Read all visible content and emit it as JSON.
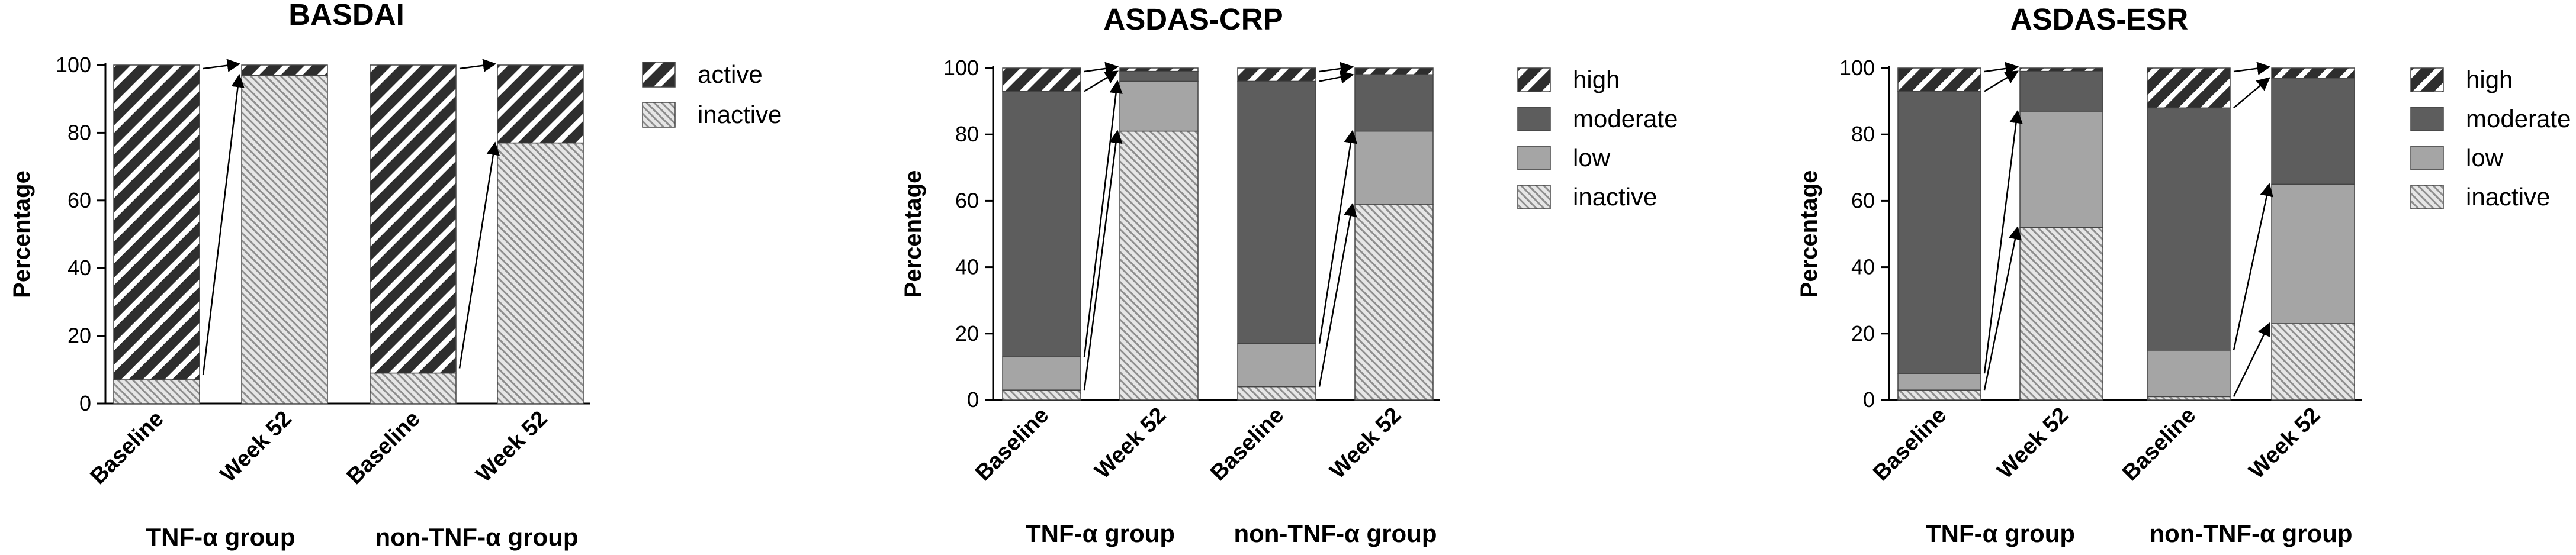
{
  "colors": {
    "moderate": "#5d5d5d",
    "low": "#a5a5a5",
    "hatch_dark_bg": "#2e2e2e",
    "hatch_light_bg": "#d7d7d7",
    "axis": "#000000"
  },
  "chart_data": [
    {
      "type": "bar",
      "stacked": true,
      "title": "BASDAI",
      "ylabel": "Percentage",
      "ylim": [
        0,
        100
      ],
      "yticks": [
        0,
        20,
        40,
        60,
        80,
        100
      ],
      "categories": [
        "Baseline",
        "Week 52",
        "Baseline",
        "Week 52"
      ],
      "groups": [
        {
          "label": "TNF-α group",
          "bars": [
            0,
            1
          ]
        },
        {
          "label": "non-TNF-α group",
          "bars": [
            2,
            3
          ]
        }
      ],
      "series": [
        {
          "name": "inactive",
          "style": "hatch-light",
          "values": [
            7,
            97,
            9,
            77
          ]
        },
        {
          "name": "active",
          "style": "hatch-dark",
          "values": [
            93,
            3,
            91,
            23
          ]
        }
      ],
      "legend": [
        {
          "name": "active",
          "style": "hatch-dark"
        },
        {
          "name": "inactive",
          "style": "hatch-light"
        }
      ],
      "legend_position": "right"
    },
    {
      "type": "bar",
      "stacked": true,
      "title": "ASDAS-CRP",
      "ylabel": "Percentage",
      "ylim": [
        0,
        100
      ],
      "yticks": [
        0,
        20,
        40,
        60,
        80,
        100
      ],
      "categories": [
        "Baseline",
        "Week 52",
        "Baseline",
        "Week 52"
      ],
      "groups": [
        {
          "label": "TNF-α group",
          "bars": [
            0,
            1
          ]
        },
        {
          "label": "non-TNF-α group",
          "bars": [
            2,
            3
          ]
        }
      ],
      "series": [
        {
          "name": "inactive",
          "style": "hatch-light",
          "values": [
            3,
            81,
            4,
            59
          ]
        },
        {
          "name": "low",
          "style": "low",
          "values": [
            10,
            15,
            13,
            22
          ]
        },
        {
          "name": "moderate",
          "style": "moderate",
          "values": [
            80,
            3,
            79,
            17
          ]
        },
        {
          "name": "high",
          "style": "hatch-dark",
          "values": [
            7,
            1,
            4,
            2
          ]
        }
      ],
      "legend": [
        {
          "name": "high",
          "style": "hatch-dark"
        },
        {
          "name": "moderate",
          "style": "moderate"
        },
        {
          "name": "low",
          "style": "low"
        },
        {
          "name": "inactive",
          "style": "hatch-light"
        }
      ],
      "legend_position": "right"
    },
    {
      "type": "bar",
      "stacked": true,
      "title": "ASDAS-ESR",
      "ylabel": "Percentage",
      "ylim": [
        0,
        100
      ],
      "yticks": [
        0,
        20,
        40,
        60,
        80,
        100
      ],
      "categories": [
        "Baseline",
        "Week 52",
        "Baseline",
        "Week 52"
      ],
      "groups": [
        {
          "label": "TNF-α group",
          "bars": [
            0,
            1
          ]
        },
        {
          "label": "non-TNF-α group",
          "bars": [
            2,
            3
          ]
        }
      ],
      "series": [
        {
          "name": "inactive",
          "style": "hatch-light",
          "values": [
            3,
            52,
            1,
            23
          ]
        },
        {
          "name": "low",
          "style": "low",
          "values": [
            5,
            35,
            14,
            42
          ]
        },
        {
          "name": "moderate",
          "style": "moderate",
          "values": [
            85,
            12,
            73,
            32
          ]
        },
        {
          "name": "high",
          "style": "hatch-dark",
          "values": [
            7,
            1,
            12,
            3
          ]
        }
      ],
      "legend": [
        {
          "name": "high",
          "style": "hatch-dark"
        },
        {
          "name": "moderate",
          "style": "moderate"
        },
        {
          "name": "low",
          "style": "low"
        },
        {
          "name": "inactive",
          "style": "hatch-light"
        }
      ],
      "legend_position": "right"
    }
  ]
}
